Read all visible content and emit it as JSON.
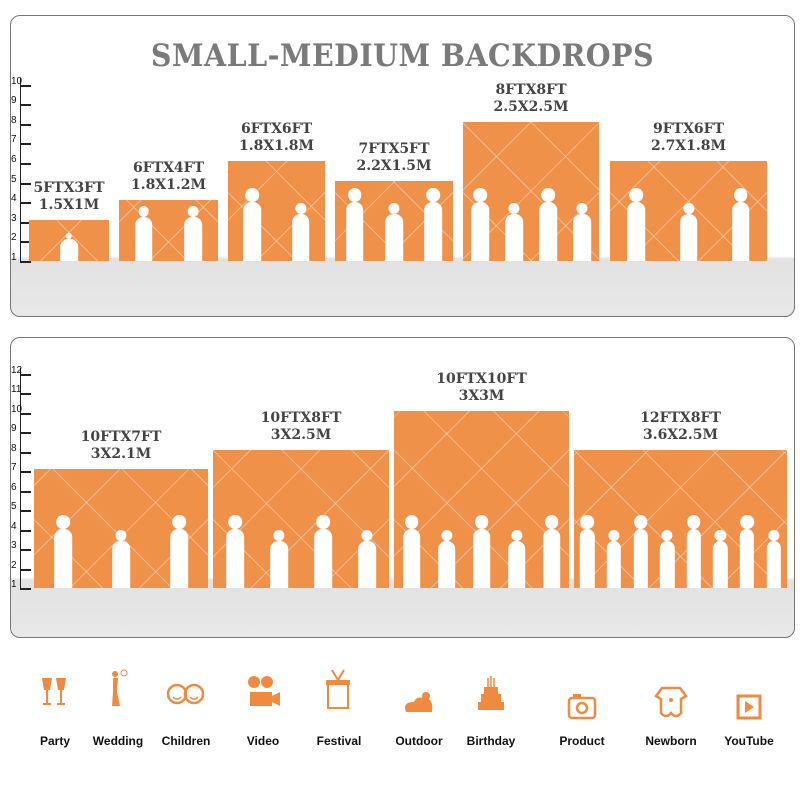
{
  "title": "SMALL-MEDIUM BACKDROPS",
  "accent_color": "#f0914a",
  "panels": [
    {
      "axis_ticks": [
        "1",
        "2",
        "3",
        "4",
        "5",
        "6",
        "7",
        "8",
        "9",
        "10"
      ],
      "sizes": [
        {
          "ft": "5FTX3FT",
          "m": "1.5X1M",
          "width_ft": 5,
          "height_ft": 3,
          "figures": 1
        },
        {
          "ft": "6FTX4FT",
          "m": "1.8X1.2M",
          "width_ft": 6,
          "height_ft": 4,
          "figures": 2
        },
        {
          "ft": "6FTX6FT",
          "m": "1.8X1.8M",
          "width_ft": 6,
          "height_ft": 6,
          "figures": 2
        },
        {
          "ft": "7FTX5FT",
          "m": "2.2X1.5M",
          "width_ft": 7,
          "height_ft": 5,
          "figures": 3
        },
        {
          "ft": "8FTX8FT",
          "m": "2.5X2.5M",
          "width_ft": 8,
          "height_ft": 8,
          "figures": 4
        },
        {
          "ft": "9FTX6FT",
          "m": "2.7X1.8M",
          "width_ft": 9,
          "height_ft": 6,
          "figures": 3
        }
      ]
    },
    {
      "axis_ticks": [
        "1",
        "2",
        "3",
        "4",
        "5",
        "6",
        "7",
        "8",
        "9",
        "10",
        "11",
        "12"
      ],
      "sizes": [
        {
          "ft": "10FTX7FT",
          "m": "3X2.1M",
          "width_ft": 10,
          "height_ft": 7,
          "figures": 3
        },
        {
          "ft": "10FTX8FT",
          "m": "3X2.5M",
          "width_ft": 10,
          "height_ft": 8,
          "figures": 4
        },
        {
          "ft": "10FTX10FT",
          "m": "3X3M",
          "width_ft": 10,
          "height_ft": 10,
          "figures": 5
        },
        {
          "ft": "12FTX8FT",
          "m": "3.6X2.5M",
          "width_ft": 12,
          "height_ft": 8,
          "figures": 8
        }
      ]
    }
  ],
  "uses": [
    {
      "label": "Party",
      "icon": "champagne-glasses-icon"
    },
    {
      "label": "Wedding",
      "icon": "wedding-couple-icon"
    },
    {
      "label": "Children",
      "icon": "children-faces-icon"
    },
    {
      "label": "Video",
      "icon": "video-camera-icon"
    },
    {
      "label": "Festival",
      "icon": "gift-box-icon"
    },
    {
      "label": "Outdoor",
      "icon": "cloud-icon"
    },
    {
      "label": "Birthday",
      "icon": "birthday-cake-icon"
    },
    {
      "label": "Product",
      "icon": "camera-icon"
    },
    {
      "label": "Newborn",
      "icon": "baby-onesie-icon"
    },
    {
      "label": "YouTube",
      "icon": "play-button-icon"
    }
  ]
}
